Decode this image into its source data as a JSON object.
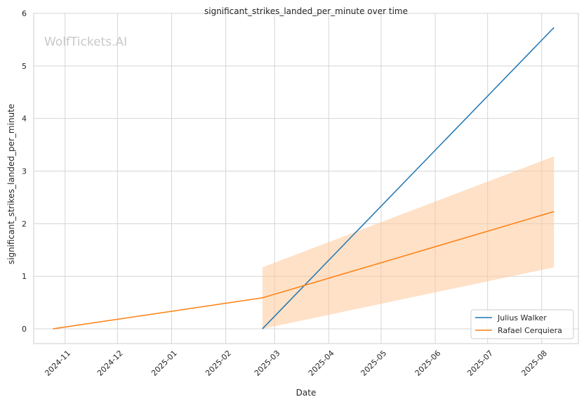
{
  "chart_data": {
    "type": "line",
    "title": "significant_strikes_landed_per_minute over time",
    "xlabel": "Date",
    "ylabel": "significant_strikes_landed_per_minute",
    "watermark": "WolfTickets.AI",
    "xlim": [
      "2024-10-14",
      "2025-08-22"
    ],
    "ylim": [
      -0.28,
      6.0
    ],
    "x_ticks": [
      "2024-11-01",
      "2024-12-01",
      "2025-01-01",
      "2025-02-01",
      "2025-03-01",
      "2025-04-01",
      "2025-05-01",
      "2025-06-01",
      "2025-07-01",
      "2025-08-01"
    ],
    "x_tick_labels": [
      "2024-11",
      "2024-12",
      "2025-01",
      "2025-02",
      "2025-03",
      "2025-04",
      "2025-05",
      "2025-06",
      "2025-07",
      "2025-08"
    ],
    "y_ticks": [
      0,
      1,
      2,
      3,
      4,
      5,
      6
    ],
    "y_tick_labels": [
      "0",
      "1",
      "2",
      "3",
      "4",
      "5",
      "6"
    ],
    "grid": true,
    "legend_position": "bottom-right",
    "series": [
      {
        "name": "Julius Walker",
        "color": "#1f77b4",
        "x": [
          "2025-02-22",
          "2025-08-08"
        ],
        "y": [
          0.0,
          5.73
        ]
      },
      {
        "name": "Rafael Cerquiera",
        "color": "#ff7f0e",
        "x": [
          "2024-10-25",
          "2025-02-22",
          "2025-08-08"
        ],
        "y": [
          0.0,
          0.59,
          2.23
        ],
        "band": {
          "x": [
            "2025-02-22",
            "2025-08-08"
          ],
          "lower": [
            0.0,
            1.17
          ],
          "upper": [
            1.17,
            3.28
          ],
          "color": "#ffc999",
          "opacity": 0.55
        }
      }
    ]
  }
}
